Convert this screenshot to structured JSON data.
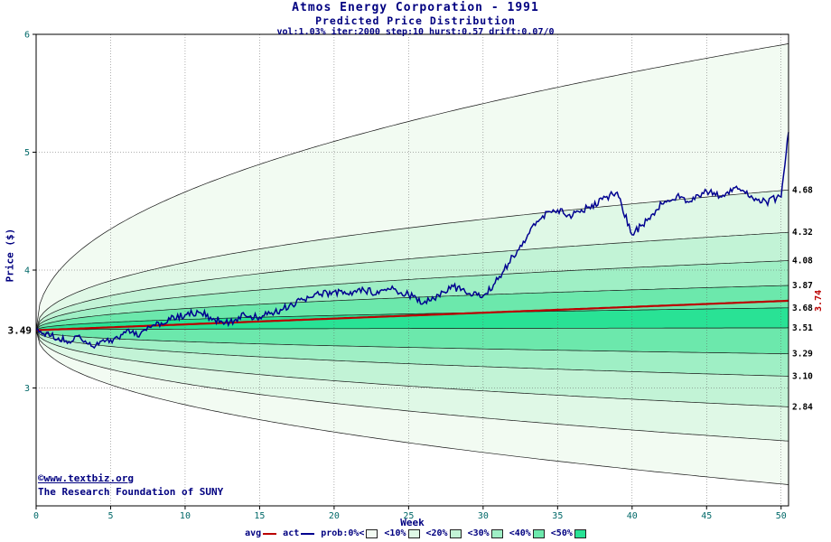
{
  "colors": {
    "avg": "#bb0000",
    "act": "#000090",
    "title": "#000080",
    "tick": "#006868",
    "band_scale": [
      "#f2fbf2",
      "#dff8e6",
      "#c2f3d6",
      "#9fefc5",
      "#6ce8ac",
      "#29e295"
    ]
  },
  "legend": {
    "avg_label": "avg",
    "act_label": "act",
    "prob_label": "prob:0%<",
    "band_labels": [
      "<10%",
      "<20%",
      "<30%",
      "<40%",
      "<50%"
    ]
  },
  "watermark": {
    "line1": "©www.textbiz.org",
    "line2": "The Research Foundation of SUNY"
  },
  "chart_data": {
    "type": "area",
    "title": "Atmos Energy Corporation - 1991",
    "subtitle": "Predicted Price Distribution",
    "params": "vol:1.03% iter:2000 step:10 hurst:0.57 drift:0.07/0",
    "xlabel": "Week",
    "ylabel": "Price ($)",
    "xlim": [
      0,
      50.5
    ],
    "ylim": [
      2,
      6
    ],
    "x_ticks": [
      0,
      5,
      10,
      15,
      20,
      25,
      30,
      35,
      40,
      45,
      50
    ],
    "y_ticks": [
      3,
      4,
      5,
      6
    ],
    "grid": true,
    "legend_position": "bottom",
    "start_price": 3.49,
    "start_price_label": "3.49",
    "t_end": 50.5,
    "spread_exponent": 0.45,
    "quantile_ends": [
      5.92,
      4.68,
      4.32,
      4.08,
      3.87,
      3.68,
      3.51,
      3.29,
      3.1,
      2.84,
      2.55,
      2.18
    ],
    "right_axis_labels": [
      "4.68",
      "4.32",
      "4.08",
      "3.87",
      "3.68",
      "3.51",
      "3.29",
      "3.10",
      "2.84"
    ],
    "band_gap_colors": [
      "#f2fbf2",
      "#dff8e6",
      "#c2f3d6",
      "#9fefc5",
      "#6ce8ac",
      "#29e295",
      "#6ce8ac",
      "#9fefc5",
      "#c2f3d6",
      "#dff8e6",
      "#f2fbf2"
    ],
    "avg_end": 3.74,
    "avg_end_label": "3.74",
    "avg_exponent": 1.0,
    "steps_per_week": 10,
    "act_noise": 0.032,
    "act_weekly": [
      3.49,
      3.44,
      3.4,
      3.42,
      3.36,
      3.41,
      3.47,
      3.46,
      3.53,
      3.58,
      3.62,
      3.64,
      3.58,
      3.56,
      3.62,
      3.6,
      3.64,
      3.7,
      3.75,
      3.79,
      3.82,
      3.79,
      3.83,
      3.8,
      3.84,
      3.79,
      3.72,
      3.79,
      3.86,
      3.8,
      3.78,
      3.92,
      4.12,
      4.3,
      4.46,
      4.51,
      4.46,
      4.53,
      4.6,
      4.66,
      4.3,
      4.42,
      4.56,
      4.63,
      4.58,
      4.67,
      4.62,
      4.71,
      4.63,
      4.58,
      4.62
    ],
    "act_final_x": 50.5,
    "act_final_y": 5.17
  }
}
